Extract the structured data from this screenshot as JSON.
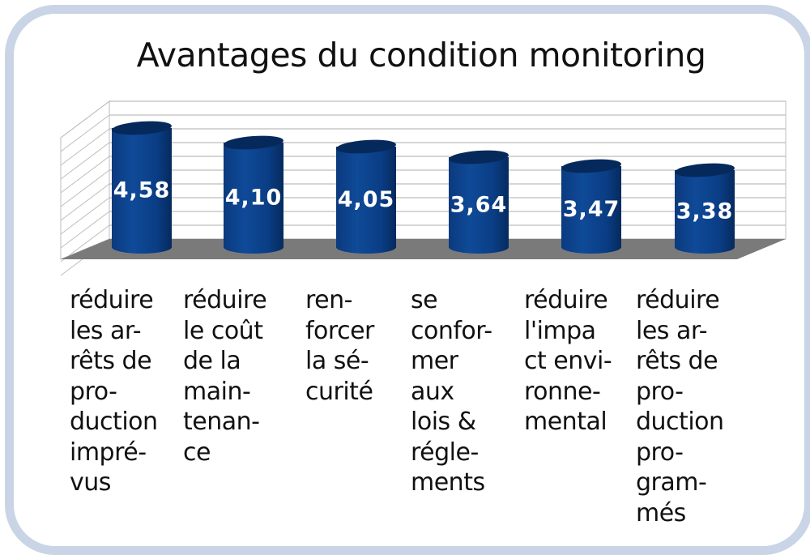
{
  "chart_data": {
    "type": "bar",
    "style": "3d-cylinder",
    "title": "Avantages du condition monitoring",
    "xlabel": "",
    "ylabel": "",
    "grid": true,
    "legend": null,
    "categories": [
      "réduire les arrêts de production imprévus",
      "réduire le coût de la maintenance",
      "renforcer la sécurité",
      "se conformer aux lois & réglements",
      "réduire l'impact environnemental",
      "réduire les arrêts de production programmés"
    ],
    "values": [
      4.58,
      4.1,
      4.05,
      3.64,
      3.47,
      3.38
    ],
    "value_labels": [
      "4,58",
      "4,10",
      "4,05",
      "3,64",
      "3,47",
      "3,38"
    ],
    "category_lines": [
      [
        "réduire",
        "les ar-",
        "rêts de",
        "pro-",
        "duction",
        "impré-",
        "vus"
      ],
      [
        "réduire",
        "le coût",
        "de la",
        "main-",
        "tenan-",
        "ce"
      ],
      [
        "ren-",
        "forcer",
        "la sé-",
        "curité"
      ],
      [
        "se",
        "confor-",
        "mer",
        "aux",
        "lois &",
        "régle-",
        "ments"
      ],
      [
        "réduire",
        "l'impa",
        "ct envi-",
        "ronne-",
        "mental"
      ],
      [
        "réduire",
        "les ar-",
        "rêts de",
        "pro-",
        "duction",
        "pro-",
        "gram-",
        "més"
      ]
    ],
    "colors": {
      "bar": "#0a3f8a",
      "bar_dark": "#06295c",
      "floor": "#7a7a7a",
      "grid": "#bdbdbd",
      "frame": "#c9d5e6"
    }
  }
}
